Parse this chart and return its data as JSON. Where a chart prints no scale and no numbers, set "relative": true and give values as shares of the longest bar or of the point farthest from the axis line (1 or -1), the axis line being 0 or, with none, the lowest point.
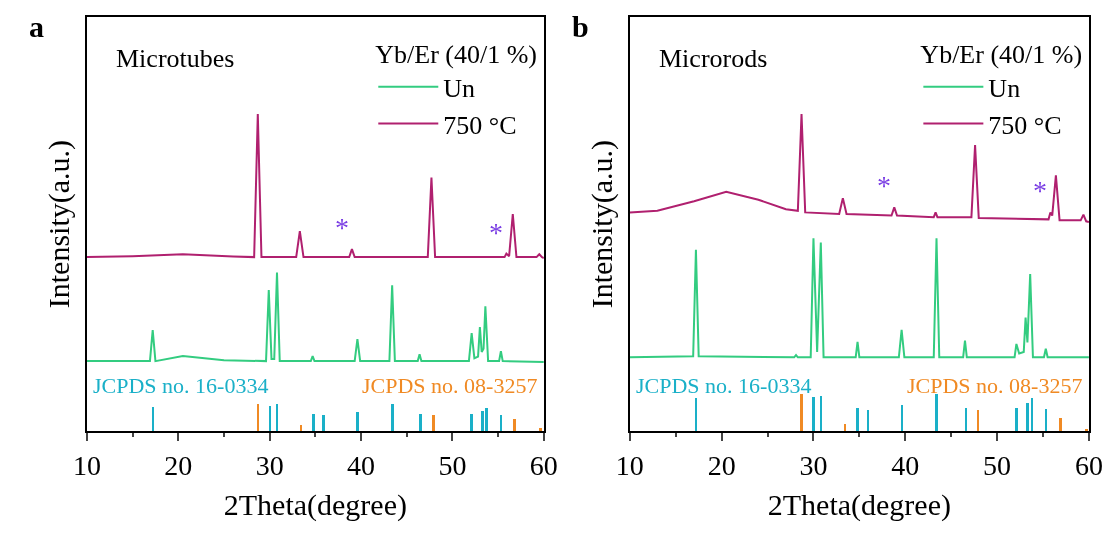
{
  "chart_data": [
    {
      "type": "line",
      "title": "a",
      "relative": true,
      "xlabel": "2Theta(degree)",
      "ylabel": "Intensity(a.u.)",
      "legend_title": "Yb/Er (40/1 %)",
      "legend": "top right",
      "tick_labels": "x",
      "xlim": [
        10,
        60
      ],
      "xticks": [
        10,
        20,
        30,
        40,
        50,
        60
      ],
      "annotations": [
        "Microtubes",
        {
          "text": "*",
          "x": 39.0,
          "y": 0.574
        },
        {
          "text": "*",
          "x": 55.9,
          "y": 0.56
        }
      ],
      "series": [
        {
          "name": "Un",
          "color": "#33cc80",
          "x": [
            10,
            16.9,
            17.2,
            17.5,
            20.5,
            25,
            29.6,
            29.9,
            30.2,
            30.5,
            30.8,
            31.1,
            34.5,
            34.7,
            34.9,
            39.3,
            39.6,
            39.9,
            43.1,
            43.4,
            43.7,
            46.2,
            46.4,
            46.6,
            51.8,
            52.1,
            52.4,
            52.8,
            53.0,
            53.2,
            53.4,
            53.6,
            53.9,
            55.1,
            55.3,
            55.5,
            60
          ],
          "values": [
            0.221,
            0.221,
            0.319,
            0.221,
            0.237,
            0.224,
            0.221,
            0.445,
            0.228,
            0.228,
            0.5,
            0.221,
            0.221,
            0.237,
            0.221,
            0.221,
            0.29,
            0.221,
            0.221,
            0.46,
            0.221,
            0.221,
            0.243,
            0.221,
            0.221,
            0.309,
            0.23,
            0.235,
            0.328,
            0.25,
            0.26,
            0.394,
            0.221,
            0.221,
            0.252,
            0.221,
            0.218
          ]
        },
        {
          "name": "750 °C",
          "color": "#b0206f",
          "x": [
            10,
            15,
            20.5,
            26,
            28.3,
            28.7,
            29.1,
            32.9,
            33.3,
            33.7,
            38.7,
            39.0,
            39.3,
            47.3,
            47.7,
            48.1,
            55.7,
            55.9,
            56.2,
            56.6,
            57.0,
            59.2,
            59.5,
            59.8,
            60
          ],
          "values": [
            0.549,
            0.552,
            0.558,
            0.551,
            0.549,
            1.0,
            0.549,
            0.549,
            0.631,
            0.549,
            0.549,
            0.574,
            0.549,
            0.549,
            0.8,
            0.549,
            0.549,
            0.56,
            0.552,
            0.685,
            0.549,
            0.549,
            0.558,
            0.549,
            0.546
          ]
        },
        {
          "type": "bar",
          "name": "JCPDS no. 16-0334",
          "color": "#1ab0c8",
          "x": [
            17.2,
            30.0,
            30.8,
            34.8,
            35.9,
            39.6,
            43.4,
            46.5,
            52.1,
            53.3,
            53.7,
            55.3
          ],
          "values": [
            0.076,
            0.078,
            0.085,
            0.054,
            0.052,
            0.06,
            0.087,
            0.055,
            0.055,
            0.063,
            0.073,
            0.052
          ]
        },
        {
          "type": "bar",
          "name": "JCPDS no. 08-3257",
          "color": "#f08a24",
          "x": [
            28.7,
            33.4,
            47.9,
            56.8,
            59.6
          ],
          "values": [
            0.087,
            0.02,
            0.052,
            0.039,
            0.011
          ]
        }
      ]
    },
    {
      "type": "line",
      "title": "b",
      "relative": true,
      "xlabel": "2Theta(degree)",
      "ylabel": "Intensity(a.u.)",
      "legend_title": "Yb/Er (40/1 %)",
      "legend": "top right",
      "tick_labels": "x",
      "xlim": [
        10,
        60
      ],
      "xticks": [
        10,
        20,
        30,
        40,
        50,
        60
      ],
      "annotations": [
        "Microrods",
        {
          "text": "*",
          "x": 38.8,
          "y": 0.706
        },
        {
          "text": "*",
          "x": 55.8,
          "y": 0.69
        }
      ],
      "series": [
        {
          "name": "Un",
          "color": "#33cc80",
          "x": [
            10,
            16.9,
            17.2,
            17.5,
            27.9,
            28.1,
            28.3,
            29.7,
            30.0,
            30.4,
            30.8,
            31.1,
            34.6,
            34.8,
            35.0,
            39.3,
            39.6,
            39.9,
            43.1,
            43.4,
            43.7,
            46.3,
            46.5,
            46.7,
            51.9,
            52.1,
            52.4,
            52.9,
            53.1,
            53.3,
            53.6,
            53.9,
            55.1,
            55.3,
            55.5,
            60
          ],
          "values": [
            0.233,
            0.236,
            0.572,
            0.236,
            0.233,
            0.24,
            0.233,
            0.233,
            0.608,
            0.25,
            0.595,
            0.233,
            0.233,
            0.282,
            0.233,
            0.233,
            0.32,
            0.233,
            0.233,
            0.608,
            0.233,
            0.233,
            0.286,
            0.233,
            0.233,
            0.275,
            0.245,
            0.25,
            0.358,
            0.28,
            0.496,
            0.233,
            0.233,
            0.26,
            0.233,
            0.233
          ]
        },
        {
          "name": "750 °C",
          "color": "#b0206f",
          "x": [
            10,
            13,
            17,
            20.5,
            24,
            27,
            28.3,
            28.7,
            29.1,
            32.8,
            33.2,
            33.6,
            38.5,
            38.8,
            39.1,
            43.1,
            43.3,
            43.5,
            47.2,
            47.6,
            48.0,
            55.6,
            55.8,
            56.0,
            56.4,
            56.8,
            59.1,
            59.4,
            59.7,
            60
          ],
          "values": [
            0.69,
            0.695,
            0.725,
            0.755,
            0.73,
            0.7,
            0.695,
            1.0,
            0.69,
            0.685,
            0.735,
            0.685,
            0.68,
            0.706,
            0.68,
            0.675,
            0.69,
            0.675,
            0.675,
            0.902,
            0.672,
            0.668,
            0.69,
            0.68,
            0.807,
            0.665,
            0.665,
            0.683,
            0.662,
            0.66
          ]
        },
        {
          "type": "bar",
          "name": "JCPDS no. 16-0334",
          "color": "#1ab0c8",
          "x": [
            17.2,
            30.0,
            30.8,
            34.8,
            35.9,
            39.6,
            43.4,
            46.6,
            52.1,
            53.3,
            53.8,
            55.3
          ],
          "values": [
            0.103,
            0.107,
            0.112,
            0.072,
            0.068,
            0.082,
            0.117,
            0.072,
            0.072,
            0.088,
            0.103,
            0.07
          ]
        },
        {
          "type": "bar",
          "name": "JCPDS no. 08-3257",
          "color": "#f08a24",
          "x": [
            28.7,
            33.4,
            47.9,
            56.9,
            59.7
          ],
          "values": [
            0.117,
            0.023,
            0.068,
            0.04,
            0.008
          ]
        }
      ]
    }
  ]
}
